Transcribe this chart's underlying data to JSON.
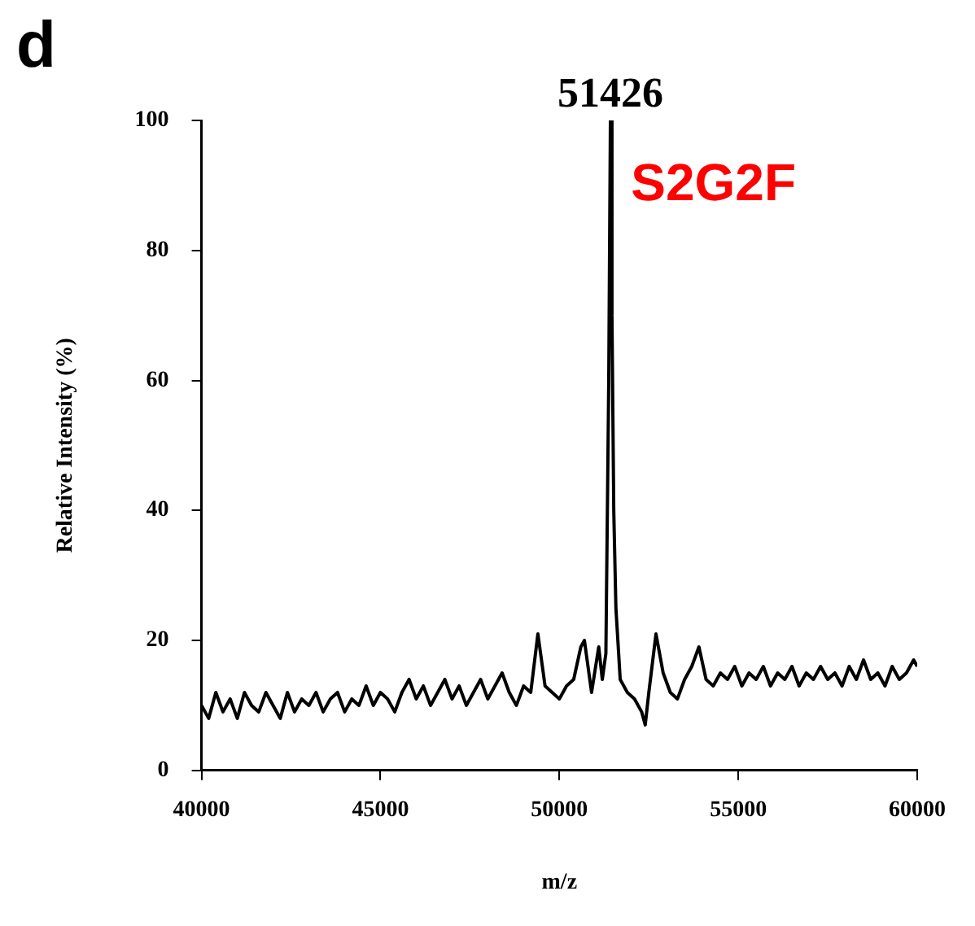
{
  "chart_data": {
    "type": "line",
    "xlabel": "m/z",
    "ylabel": "Relative Intensity (%)",
    "xlim": [
      40000,
      60000
    ],
    "xticks": [
      40000,
      45000,
      50000,
      55000,
      60000
    ],
    "ylim": [
      0,
      100
    ],
    "yticks": [
      0,
      20,
      40,
      60,
      80,
      100
    ],
    "annotations": [
      "d",
      "S2G2F",
      {
        "text": "51426",
        "x": 51426,
        "y": 100
      }
    ],
    "series": [
      {
        "color": "#000000",
        "x": [
          40000,
          40200,
          40400,
          40600,
          40800,
          41000,
          41200,
          41400,
          41600,
          41800,
          42000,
          42200,
          42400,
          42600,
          42800,
          43000,
          43200,
          43400,
          43600,
          43800,
          44000,
          44200,
          44400,
          44600,
          44800,
          45000,
          45200,
          45400,
          45600,
          45800,
          46000,
          46200,
          46400,
          46600,
          46800,
          47000,
          47200,
          47400,
          47600,
          47800,
          48000,
          48200,
          48400,
          48600,
          48800,
          49000,
          49200,
          49400,
          49600,
          49800,
          50000,
          50200,
          50400,
          50600,
          50700,
          50900,
          51100,
          51200,
          51300,
          51380,
          51426,
          51470,
          51520,
          51580,
          51700,
          51900,
          52100,
          52300,
          52400,
          52500,
          52700,
          52900,
          53100,
          53300,
          53500,
          53700,
          53900,
          54100,
          54300,
          54500,
          54700,
          54900,
          55100,
          55300,
          55500,
          55700,
          55900,
          56100,
          56300,
          56500,
          56700,
          56900,
          57100,
          57300,
          57500,
          57700,
          57900,
          58100,
          58300,
          58500,
          58700,
          58900,
          59100,
          59300,
          59500,
          59700,
          59900,
          60000
        ],
        "values": [
          10,
          8,
          12,
          9,
          11,
          8,
          12,
          10,
          9,
          12,
          10,
          8,
          12,
          9,
          11,
          10,
          12,
          9,
          11,
          12,
          9,
          11,
          10,
          13,
          10,
          12,
          11,
          9,
          12,
          14,
          11,
          13,
          10,
          12,
          14,
          11,
          13,
          10,
          12,
          14,
          11,
          13,
          15,
          12,
          10,
          13,
          12,
          21,
          13,
          12,
          11,
          13,
          14,
          19,
          20,
          12,
          19,
          14,
          18,
          60,
          100,
          70,
          40,
          25,
          14,
          12,
          11,
          9,
          7,
          12,
          21,
          15,
          12,
          11,
          14,
          16,
          19,
          14,
          13,
          15,
          14,
          16,
          13,
          15,
          14,
          16,
          13,
          15,
          14,
          16,
          13,
          15,
          14,
          16,
          14,
          15,
          13,
          16,
          14,
          17,
          14,
          15,
          13,
          16,
          14,
          15,
          17,
          16
        ]
      }
    ]
  }
}
